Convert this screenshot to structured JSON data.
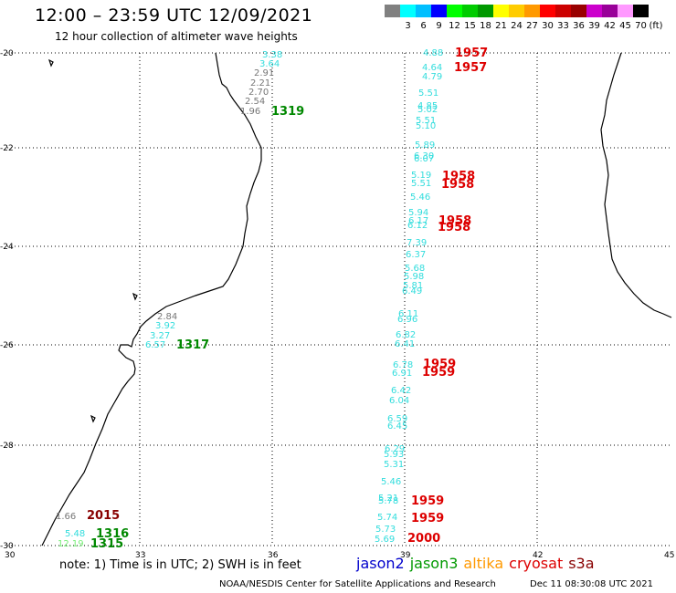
{
  "title": "12:00 – 23:59 UTC 12/09/2021",
  "subtitle": "12 hour collection of altimeter wave heights",
  "legend": {
    "unit": "(ft)",
    "bins": [
      {
        "label": "",
        "color": "#808080"
      },
      {
        "label": "3",
        "color": "#00ffff"
      },
      {
        "label": "6",
        "color": "#00bfff"
      },
      {
        "label": "9",
        "color": "#0000ff"
      },
      {
        "label": "12",
        "color": "#00ff00"
      },
      {
        "label": "15",
        "color": "#00cc00"
      },
      {
        "label": "18",
        "color": "#009900"
      },
      {
        "label": "21",
        "color": "#ffff00"
      },
      {
        "label": "24",
        "color": "#ffcc00"
      },
      {
        "label": "27",
        "color": "#ff9900"
      },
      {
        "label": "30",
        "color": "#ff0000"
      },
      {
        "label": "33",
        "color": "#cc0000"
      },
      {
        "label": "36",
        "color": "#990000"
      },
      {
        "label": "39",
        "color": "#cc00cc"
      },
      {
        "label": "42",
        "color": "#990099"
      },
      {
        "label": "45",
        "color": "#ff99ff"
      },
      {
        "label": "70",
        "color": "#000000"
      }
    ]
  },
  "axes": {
    "y_labels": [
      "-20",
      "-22",
      "-24",
      "-26",
      "-28",
      "-30"
    ],
    "x_labels": [
      "30",
      "33",
      "36",
      "39",
      "42",
      "45"
    ]
  },
  "tracks": [
    {
      "name": "east_track",
      "values": [
        {
          "v": "4.88",
          "c": "#33dddd"
        },
        {
          "v": "4.64",
          "c": "#33dddd"
        },
        {
          "v": "4.79",
          "c": "#33dddd"
        },
        {
          "v": "5.51",
          "c": "#33dddd"
        },
        {
          "v": "4.85",
          "c": "#33dddd"
        },
        {
          "v": "5.02",
          "c": "#33dddd"
        },
        {
          "v": "5.51",
          "c": "#33dddd"
        },
        {
          "v": "5.10",
          "c": "#33dddd"
        },
        {
          "v": "5.89",
          "c": "#33dddd"
        },
        {
          "v": "6.30",
          "c": "#33dddd"
        },
        {
          "v": "6.07",
          "c": "#33dddd"
        },
        {
          "v": "5.19",
          "c": "#33dddd"
        },
        {
          "v": "5.51",
          "c": "#33dddd"
        },
        {
          "v": "5.46",
          "c": "#33dddd"
        },
        {
          "v": "5.94",
          "c": "#33dddd"
        },
        {
          "v": "6.17",
          "c": "#33dddd"
        },
        {
          "v": "6.12",
          "c": "#33dddd"
        },
        {
          "v": "7.39",
          "c": "#33dddd"
        },
        {
          "v": "6.37",
          "c": "#33dddd"
        },
        {
          "v": "5.68",
          "c": "#33dddd"
        },
        {
          "v": "5.98",
          "c": "#33dddd"
        },
        {
          "v": "5.81",
          "c": "#33dddd"
        },
        {
          "v": "6.49",
          "c": "#33dddd"
        },
        {
          "v": "6.11",
          "c": "#33dddd"
        },
        {
          "v": "6.96",
          "c": "#33dddd"
        },
        {
          "v": "6.82",
          "c": "#33dddd"
        },
        {
          "v": "6.41",
          "c": "#33dddd"
        },
        {
          "v": "6.78",
          "c": "#33dddd"
        },
        {
          "v": "6.91",
          "c": "#33dddd"
        },
        {
          "v": "6.42",
          "c": "#33dddd"
        },
        {
          "v": "6.04",
          "c": "#33dddd"
        },
        {
          "v": "6.59",
          "c": "#33dddd"
        },
        {
          "v": "6.45",
          "c": "#33dddd"
        },
        {
          "v": "6.29",
          "c": "#33dddd"
        },
        {
          "v": "5.93",
          "c": "#33dddd"
        },
        {
          "v": "5.31",
          "c": "#33dddd"
        },
        {
          "v": "5.46",
          "c": "#33dddd"
        },
        {
          "v": "5.21",
          "c": "#33dddd"
        },
        {
          "v": "5.78",
          "c": "#33dddd"
        },
        {
          "v": "5.74",
          "c": "#33dddd"
        },
        {
          "v": "5.73",
          "c": "#33dddd"
        },
        {
          "v": "5.69",
          "c": "#33dddd"
        }
      ]
    },
    {
      "name": "coast_north",
      "values": [
        {
          "v": "3.38",
          "c": "#33dddd"
        },
        {
          "v": "3.64",
          "c": "#33dddd"
        },
        {
          "v": "2.91",
          "c": "#777777"
        },
        {
          "v": "2.21",
          "c": "#777777"
        },
        {
          "v": "2.70",
          "c": "#777777"
        },
        {
          "v": "2.54",
          "c": "#777777"
        },
        {
          "v": "1.96",
          "c": "#777777"
        }
      ]
    },
    {
      "name": "coast_mid",
      "values": [
        {
          "v": "2.84",
          "c": "#777777"
        },
        {
          "v": "3.92",
          "c": "#33dddd"
        },
        {
          "v": "3.27",
          "c": "#33dddd"
        },
        {
          "v": "6.57",
          "c": "#33dddd"
        }
      ]
    },
    {
      "name": "coast_south",
      "values": [
        {
          "v": "1.66",
          "c": "#777777"
        },
        {
          "v": "5.48",
          "c": "#33dddd"
        },
        {
          "v": "12.19",
          "c": "#77ee77"
        }
      ]
    }
  ],
  "time_labels": [
    {
      "t": "1957",
      "c": "#dd0000"
    },
    {
      "t": "1957",
      "c": "#dd0000"
    },
    {
      "t": "1958",
      "c": "#dd0000"
    },
    {
      "t": "1958",
      "c": "#dd0000"
    },
    {
      "t": "1958",
      "c": "#dd0000"
    },
    {
      "t": "1958",
      "c": "#dd0000"
    },
    {
      "t": "1959",
      "c": "#dd0000"
    },
    {
      "t": "1959",
      "c": "#dd0000"
    },
    {
      "t": "1959",
      "c": "#dd0000"
    },
    {
      "t": "1959",
      "c": "#dd0000"
    },
    {
      "t": "2000",
      "c": "#dd0000"
    },
    {
      "t": "1319",
      "c": "#008800"
    },
    {
      "t": "1317",
      "c": "#008800"
    },
    {
      "t": "1316",
      "c": "#008800"
    },
    {
      "t": "1315",
      "c": "#008800"
    },
    {
      "t": "2015",
      "c": "#880000"
    }
  ],
  "footer": {
    "note": "note:  1) Time is in UTC; 2) SWH is in feet",
    "satellites": [
      {
        "name": "jason2",
        "color": "#0000cc"
      },
      {
        "name": "jason3",
        "color": "#009900"
      },
      {
        "name": "altika",
        "color": "#ff9900"
      },
      {
        "name": "cryosat",
        "color": "#dd0000"
      },
      {
        "name": "s3a",
        "color": "#880000"
      }
    ],
    "credit": "NOAA/NESDIS Center for Satellite Applications and Research",
    "timestamp": "Dec 11 08:30:08 UTC 2021"
  }
}
